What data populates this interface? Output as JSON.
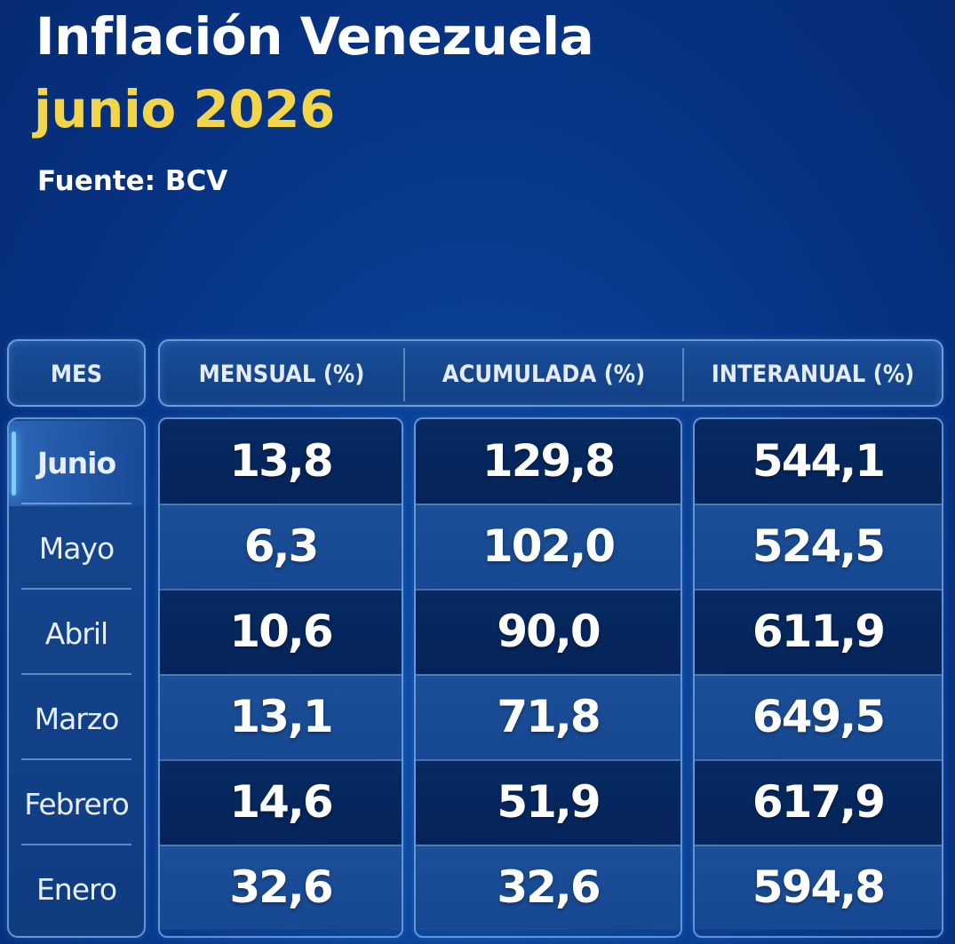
{
  "header": {
    "title": "Inflación Venezuela",
    "subtitle": "junio 2026",
    "source": "Fuente: BCV"
  },
  "colors": {
    "background": "#0a3f92",
    "title": "#ffffff",
    "subtitle_accent": "#f2d54a",
    "dark_row": "#072a62",
    "light_row": "#1b4f97",
    "active_marker": "#7fd0ff"
  },
  "table": {
    "columns": [
      "MES",
      "MENSUAL (%)",
      "ACUMULADA  (%)",
      "INTERANUAL (%)"
    ],
    "highlighted_row": "Junio",
    "rows": [
      {
        "mes": "Junio",
        "mensual": "13,8",
        "acumulada": "129,8",
        "interanual": "544,1"
      },
      {
        "mes": "Mayo",
        "mensual": "6,3",
        "acumulada": "102,0",
        "interanual": "524,5"
      },
      {
        "mes": "Abril",
        "mensual": "10,6",
        "acumulada": "90,0",
        "interanual": "611,9"
      },
      {
        "mes": "Marzo",
        "mensual": "13,1",
        "acumulada": "71,8",
        "interanual": "649,5"
      },
      {
        "mes": "Febrero",
        "mensual": "14,6",
        "acumulada": "51,9",
        "interanual": "617,9"
      },
      {
        "mes": "Enero",
        "mensual": "32,6",
        "acumulada": "32,6",
        "interanual": "594,8"
      }
    ]
  }
}
